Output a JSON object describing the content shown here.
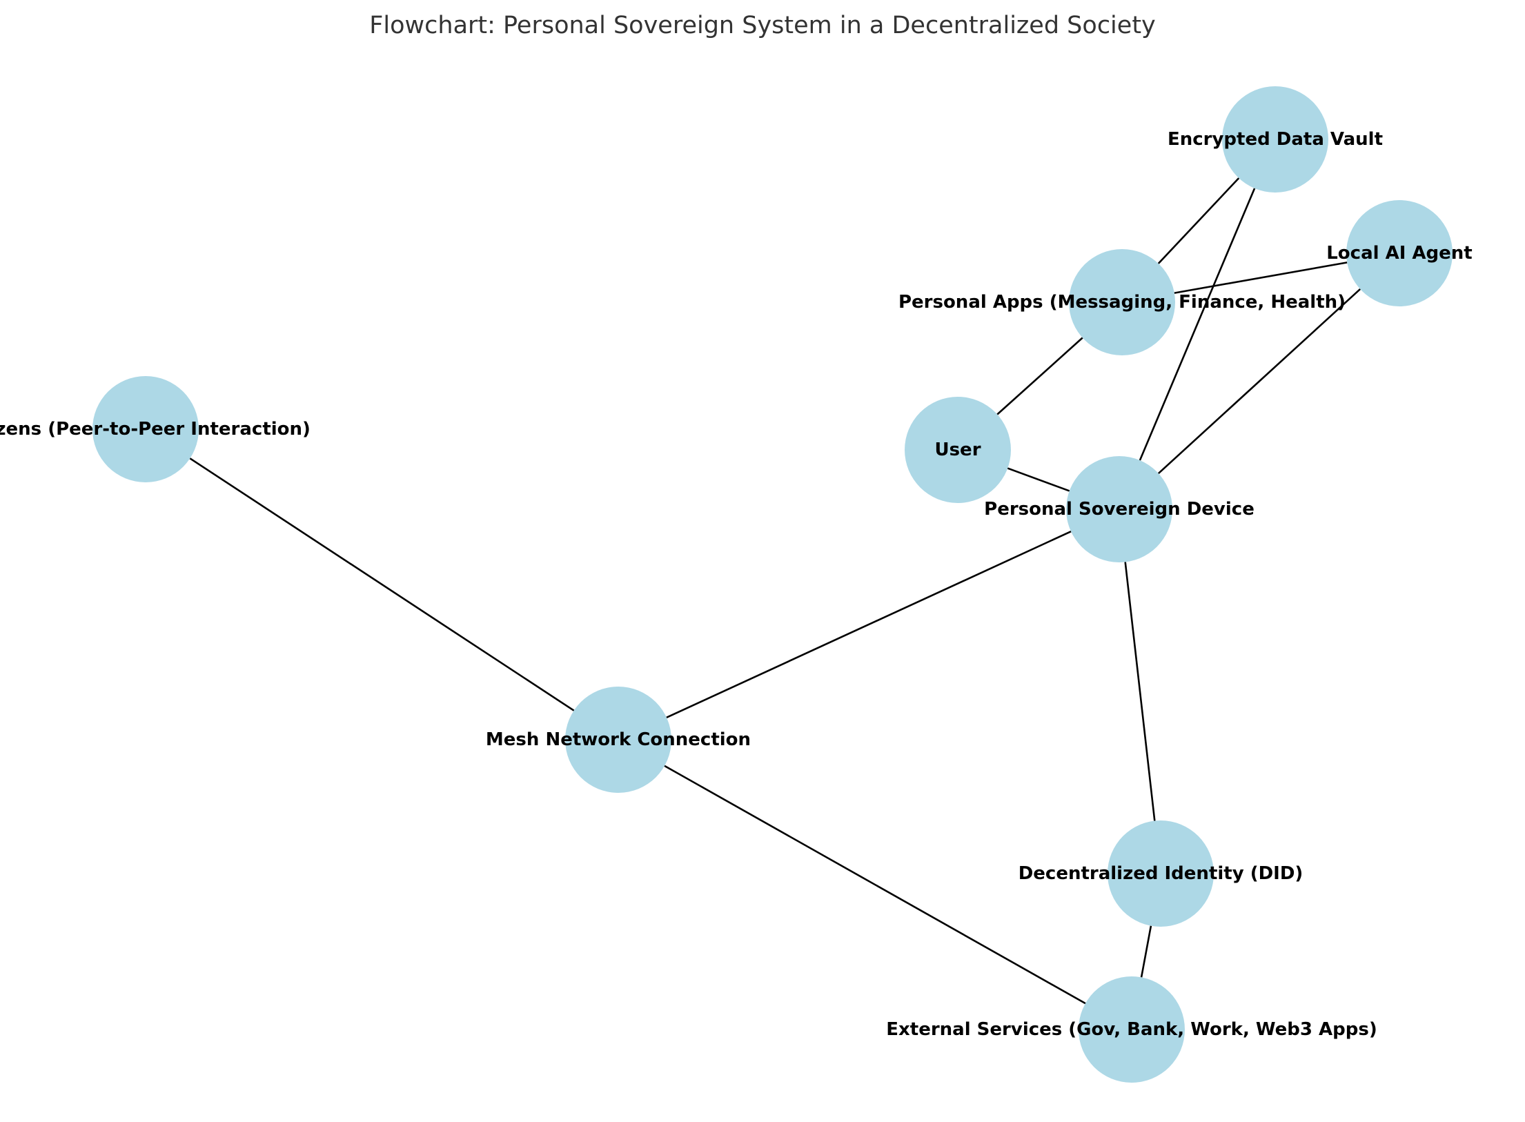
{
  "title": "Flowchart: Personal Sovereign System in a Decentralized Society",
  "colors": {
    "node_fill": "#add8e6",
    "edge": "#000000",
    "label": "#000000",
    "title": "#333333",
    "background": "#ffffff"
  },
  "nodes": [
    {
      "id": "user",
      "label": "User"
    },
    {
      "id": "psd",
      "label": "Personal Sovereign Device"
    },
    {
      "id": "vault",
      "label": "Encrypted Data Vault"
    },
    {
      "id": "ai",
      "label": "Local AI Agent"
    },
    {
      "id": "apps",
      "label": "Personal Apps (Messaging, Finance, Health)"
    },
    {
      "id": "citizens",
      "label": "tizens (Peer-to-Peer Interaction)"
    },
    {
      "id": "mesh",
      "label": "Mesh Network Connection"
    },
    {
      "id": "did",
      "label": "Decentralized Identity (DID)"
    },
    {
      "id": "ext",
      "label": "External Services (Gov, Bank, Work, Web3 Apps)"
    }
  ],
  "edges": [
    {
      "source": "user",
      "target": "psd"
    },
    {
      "source": "user",
      "target": "apps"
    },
    {
      "source": "apps",
      "target": "vault"
    },
    {
      "source": "apps",
      "target": "ai"
    },
    {
      "source": "psd",
      "target": "vault"
    },
    {
      "source": "psd",
      "target": "ai"
    },
    {
      "source": "psd",
      "target": "mesh"
    },
    {
      "source": "psd",
      "target": "did"
    },
    {
      "source": "citizens",
      "target": "mesh"
    },
    {
      "source": "mesh",
      "target": "ext"
    },
    {
      "source": "did",
      "target": "ext"
    }
  ]
}
